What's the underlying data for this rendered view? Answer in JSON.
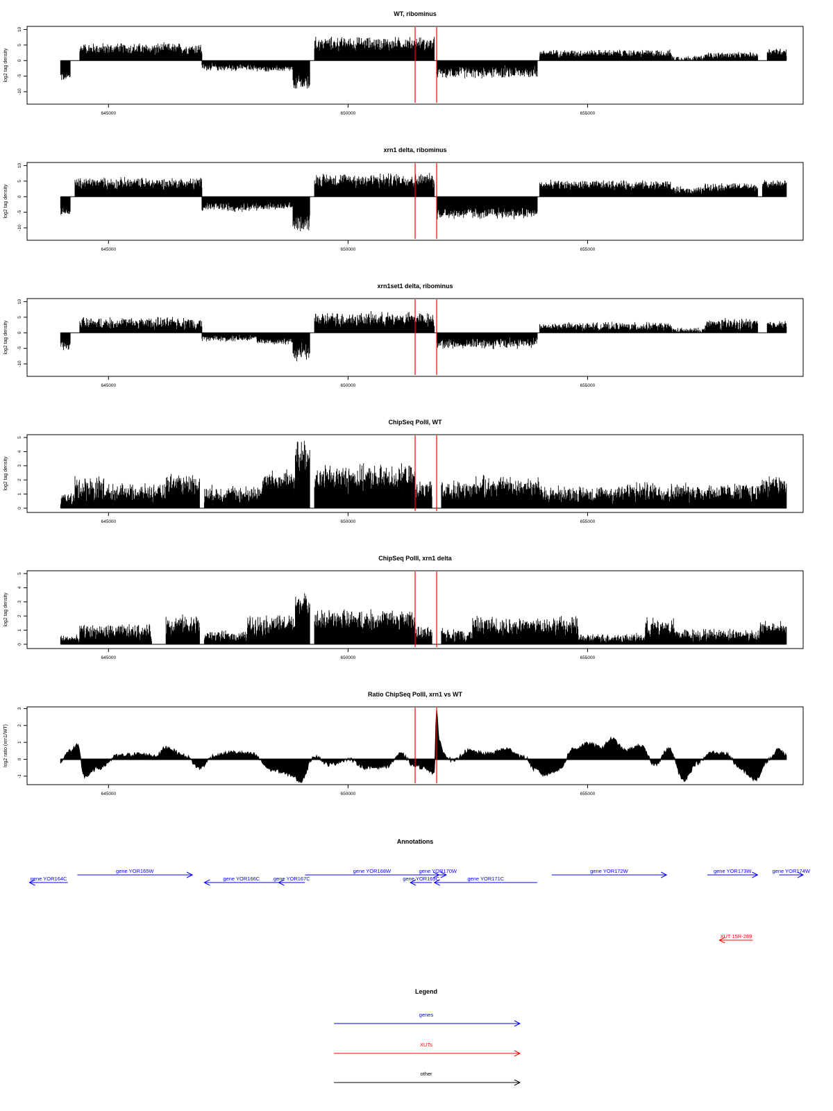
{
  "chart_data": [
    {
      "type": "bar",
      "title": "WT, ribominus",
      "ylabel": "log2 tag density",
      "xlim": [
        643300,
        659500
      ],
      "ylim": [
        -14,
        11
      ],
      "yticks": [
        -10,
        -5,
        0,
        5,
        10
      ],
      "yticklabels": [
        "-10",
        "-5",
        "0",
        "5",
        "10"
      ],
      "xticks": [
        645000,
        650000,
        655000
      ],
      "xticklabels": [
        "645000",
        "650000",
        "655000"
      ],
      "vlines": [
        651400,
        651850
      ],
      "segments": [
        {
          "x": [
            644000,
            644200
          ],
          "level": -5,
          "amp": 2
        },
        {
          "x": [
            644400,
            646950
          ],
          "level": 3.5,
          "amp": 2.5
        },
        {
          "x": [
            646950,
            648100
          ],
          "level": -2,
          "amp": 1.5
        },
        {
          "x": [
            648100,
            648850
          ],
          "level": -2.5,
          "amp": 1.2
        },
        {
          "x": [
            648850,
            649200
          ],
          "level": -7,
          "amp": 3.5
        },
        {
          "x": [
            649300,
            651800
          ],
          "level": 5,
          "amp": 3
        },
        {
          "x": [
            651850,
            653950
          ],
          "level": -3.5,
          "amp": 2.5
        },
        {
          "x": [
            654000,
            656750
          ],
          "level": 2.2,
          "amp": 1.5
        },
        {
          "x": [
            656750,
            657450
          ],
          "level": 0.6,
          "amp": 1.2
        },
        {
          "x": [
            657450,
            658550
          ],
          "level": 1.6,
          "amp": 1.3
        },
        {
          "x": [
            658750,
            659150
          ],
          "level": 2.8,
          "amp": 1.5
        }
      ]
    },
    {
      "type": "bar",
      "title": "xrn1 delta, ribominus",
      "ylabel": "log2 tag density",
      "xlim": [
        643300,
        659500
      ],
      "ylim": [
        -14,
        11
      ],
      "yticks": [
        -10,
        -5,
        0,
        5,
        10
      ],
      "yticklabels": [
        "-10",
        "-5",
        "0",
        "5",
        "10"
      ],
      "xticks": [
        645000,
        650000,
        655000
      ],
      "xticklabels": [
        "645000",
        "650000",
        "655000"
      ],
      "vlines": [
        651400,
        651850
      ],
      "segments": [
        {
          "x": [
            644000,
            644200
          ],
          "level": -4.5,
          "amp": 2
        },
        {
          "x": [
            644300,
            646950
          ],
          "level": 4,
          "amp": 2.5
        },
        {
          "x": [
            646950,
            648100
          ],
          "level": -3,
          "amp": 2
        },
        {
          "x": [
            648100,
            648850
          ],
          "level": -3,
          "amp": 1.5
        },
        {
          "x": [
            648850,
            649200
          ],
          "level": -8,
          "amp": 3.5
        },
        {
          "x": [
            649300,
            651800
          ],
          "level": 5,
          "amp": 3
        },
        {
          "x": [
            651850,
            653950
          ],
          "level": -5,
          "amp": 2.5
        },
        {
          "x": [
            654000,
            656750
          ],
          "level": 3.5,
          "amp": 2
        },
        {
          "x": [
            656750,
            657450
          ],
          "level": 1.8,
          "amp": 1.6
        },
        {
          "x": [
            657450,
            658550
          ],
          "level": 3,
          "amp": 1.6
        },
        {
          "x": [
            658650,
            659150
          ],
          "level": 4,
          "amp": 1.5
        }
      ]
    },
    {
      "type": "bar",
      "title": "xrn1set1 delta, ribominus",
      "ylabel": "log2 tag density",
      "xlim": [
        643300,
        659500
      ],
      "ylim": [
        -14,
        11
      ],
      "yticks": [
        -10,
        -5,
        0,
        5,
        10
      ],
      "yticklabels": [
        "-10",
        "-5",
        "0",
        "5",
        "10"
      ],
      "xticks": [
        645000,
        650000,
        655000
      ],
      "xticklabels": [
        "645000",
        "650000",
        "655000"
      ],
      "vlines": [
        651400,
        651850
      ],
      "segments": [
        {
          "x": [
            644000,
            644200
          ],
          "level": -4,
          "amp": 2
        },
        {
          "x": [
            644400,
            646950
          ],
          "level": 2.8,
          "amp": 2.5
        },
        {
          "x": [
            646950,
            648100
          ],
          "level": -1.5,
          "amp": 1.5
        },
        {
          "x": [
            648100,
            648850
          ],
          "level": -2.5,
          "amp": 1.5
        },
        {
          "x": [
            648850,
            649200
          ],
          "level": -6,
          "amp": 3.5
        },
        {
          "x": [
            649300,
            651800
          ],
          "level": 4,
          "amp": 3
        },
        {
          "x": [
            651850,
            653950
          ],
          "level": -3,
          "amp": 2.5
        },
        {
          "x": [
            654000,
            656750
          ],
          "level": 1.8,
          "amp": 1.8
        },
        {
          "x": [
            656750,
            657450
          ],
          "level": 0.6,
          "amp": 1.2
        },
        {
          "x": [
            657450,
            658550
          ],
          "level": 2.5,
          "amp": 2.5
        },
        {
          "x": [
            658750,
            659150
          ],
          "level": 2.5,
          "amp": 1.5
        }
      ]
    },
    {
      "type": "bar",
      "title": "ChipSeq PolII, WT",
      "ylabel": "log2 tag density",
      "xlim": [
        643300,
        659500
      ],
      "ylim": [
        -0.3,
        5.2
      ],
      "yticks": [
        0,
        1,
        2,
        3,
        4,
        5
      ],
      "yticklabels": [
        "0",
        "1",
        "2",
        "3",
        "4",
        "5"
      ],
      "xticks": [
        645000,
        650000,
        655000
      ],
      "xticklabels": [
        "645000",
        "650000",
        "655000"
      ],
      "vlines": [
        651400,
        651850
      ],
      "segments": [
        {
          "x": [
            644000,
            644300
          ],
          "level": 0.6,
          "amp": 0.6
        },
        {
          "x": [
            644300,
            644900
          ],
          "level": 1.3,
          "amp": 1.2
        },
        {
          "x": [
            644900,
            646200
          ],
          "level": 1,
          "amp": 0.8
        },
        {
          "x": [
            646200,
            646900
          ],
          "level": 1.6,
          "amp": 1
        },
        {
          "x": [
            647000,
            648200
          ],
          "level": 0.9,
          "amp": 0.8
        },
        {
          "x": [
            648200,
            648900
          ],
          "level": 1.8,
          "amp": 1
        },
        {
          "x": [
            648900,
            649200
          ],
          "level": 3.5,
          "amp": 1.5
        },
        {
          "x": [
            649300,
            651400
          ],
          "level": 2,
          "amp": 1.2
        },
        {
          "x": [
            651400,
            651750
          ],
          "level": 1.2,
          "amp": 0.8
        },
        {
          "x": [
            651950,
            652600
          ],
          "level": 1.1,
          "amp": 1
        },
        {
          "x": [
            652600,
            654000
          ],
          "level": 1.4,
          "amp": 1
        },
        {
          "x": [
            654000,
            655600
          ],
          "level": 0.9,
          "amp": 0.8
        },
        {
          "x": [
            655600,
            656500
          ],
          "level": 1.1,
          "amp": 0.9
        },
        {
          "x": [
            656500,
            658600
          ],
          "level": 1,
          "amp": 0.9
        },
        {
          "x": [
            658600,
            659150
          ],
          "level": 1.5,
          "amp": 1
        }
      ]
    },
    {
      "type": "bar",
      "title": "ChipSeq PolII, xrn1 delta",
      "ylabel": "log2 tag density",
      "xlim": [
        643300,
        659500
      ],
      "ylim": [
        -0.3,
        5.2
      ],
      "yticks": [
        0,
        1,
        2,
        3,
        4,
        5
      ],
      "yticklabels": [
        "0",
        "1",
        "2",
        "3",
        "4",
        "5"
      ],
      "xticks": [
        645000,
        650000,
        655000
      ],
      "xticklabels": [
        "645000",
        "650000",
        "655000"
      ],
      "vlines": [
        651400,
        651850
      ],
      "segments": [
        {
          "x": [
            644000,
            644400
          ],
          "level": 0.35,
          "amp": 0.35
        },
        {
          "x": [
            644400,
            645900
          ],
          "level": 0.8,
          "amp": 0.7
        },
        {
          "x": [
            646200,
            646900
          ],
          "level": 1.3,
          "amp": 0.9
        },
        {
          "x": [
            647000,
            647900
          ],
          "level": 0.5,
          "amp": 0.5
        },
        {
          "x": [
            647900,
            648900
          ],
          "level": 1.3,
          "amp": 0.9
        },
        {
          "x": [
            648900,
            649200
          ],
          "level": 2.8,
          "amp": 0.9
        },
        {
          "x": [
            649300,
            651400
          ],
          "level": 1.6,
          "amp": 1
        },
        {
          "x": [
            651400,
            651750
          ],
          "level": 0.7,
          "amp": 0.6
        },
        {
          "x": [
            651950,
            652600
          ],
          "level": 0.6,
          "amp": 0.6
        },
        {
          "x": [
            652600,
            654800
          ],
          "level": 1.2,
          "amp": 0.9
        },
        {
          "x": [
            654800,
            656200
          ],
          "level": 0.4,
          "amp": 0.4
        },
        {
          "x": [
            656200,
            656800
          ],
          "level": 1.1,
          "amp": 0.9
        },
        {
          "x": [
            656800,
            658600
          ],
          "level": 0.6,
          "amp": 0.6
        },
        {
          "x": [
            658600,
            659150
          ],
          "level": 1,
          "amp": 0.8
        }
      ]
    },
    {
      "type": "area",
      "title": "Ratio ChipSeq PolII, xrn1 vs WT",
      "ylabel": "log2 ratio (xrn1/WT)",
      "xlim": [
        643300,
        659500
      ],
      "ylim": [
        -1.5,
        3.1
      ],
      "yticks": [
        -1,
        0,
        1,
        2,
        3
      ],
      "yticklabels": [
        "-1",
        "0",
        "1",
        "2",
        "3"
      ],
      "xticks": [
        645000,
        650000,
        655000
      ],
      "xticklabels": [
        "645000",
        "650000",
        "655000"
      ],
      "vlines": [
        651400,
        651850
      ],
      "x": [
        644000,
        644200,
        644350,
        644500,
        644800,
        645200,
        645600,
        646000,
        646200,
        646600,
        646900,
        647200,
        647600,
        648000,
        648400,
        648800,
        649000,
        649300,
        649600,
        650000,
        650400,
        650800,
        651100,
        651400,
        651600,
        651800,
        651850,
        651900,
        652000,
        652200,
        652500,
        652900,
        653300,
        653700,
        653900,
        654100,
        654400,
        654700,
        655000,
        655300,
        655500,
        655800,
        656100,
        656400,
        656700,
        657000,
        657300,
        657600,
        657900,
        658200,
        658500,
        658800,
        659000,
        659150
      ],
      "values": [
        -0.1,
        0.5,
        0.8,
        -1.0,
        -0.5,
        0.2,
        0.3,
        0.2,
        0.7,
        0.2,
        -0.5,
        0.2,
        0.4,
        0.3,
        -0.6,
        -0.9,
        -1.3,
        0.2,
        -0.3,
        0.0,
        -0.5,
        -0.4,
        0.3,
        -0.4,
        -0.5,
        -0.8,
        2.9,
        1.2,
        0.3,
        -0.1,
        0.5,
        0.3,
        0.6,
        0.1,
        -0.6,
        -0.9,
        -0.6,
        0.6,
        0.9,
        0.7,
        1.2,
        0.5,
        0.8,
        -0.3,
        0.6,
        -1.2,
        -0.2,
        0.4,
        0.3,
        -0.6,
        -1.2,
        0.0,
        0.6,
        0.2
      ]
    }
  ],
  "annotations": {
    "title": "Annotations",
    "genes": [
      {
        "label": "gene YOR164C",
        "start": 643350,
        "end": 644150,
        "strand": "-",
        "row": 1
      },
      {
        "label": "gene YOR165W",
        "start": 644350,
        "end": 646750,
        "strand": "+",
        "row": 0
      },
      {
        "label": "gene YOR166C",
        "start": 647000,
        "end": 648550,
        "strand": "-",
        "row": 1
      },
      {
        "label": "gene YOR167C",
        "start": 648550,
        "end": 649100,
        "strand": "-",
        "row": 1
      },
      {
        "label": "gene YOR168W",
        "start": 649100,
        "end": 651900,
        "strand": "+",
        "row": 0
      },
      {
        "label": "gene YOR169C",
        "start": 651300,
        "end": 651750,
        "strand": "-",
        "row": 1
      },
      {
        "label": "gene YOR170W",
        "start": 651700,
        "end": 652050,
        "strand": "+",
        "row": 0
      },
      {
        "label": "gene YOR171C",
        "start": 651800,
        "end": 653950,
        "strand": "-",
        "row": 1
      },
      {
        "label": "gene YOR172W",
        "start": 654250,
        "end": 656650,
        "strand": "+",
        "row": 0
      },
      {
        "label": "gene YOR173W",
        "start": 657500,
        "end": 658550,
        "strand": "+",
        "row": 0
      },
      {
        "label": "gene YOR174W",
        "start": 659000,
        "end": 659500,
        "strand": "+",
        "row": 0
      }
    ],
    "xuts": [
      {
        "label": "XUT 15R-289",
        "start": 657750,
        "end": 658450,
        "strand": "-"
      }
    ]
  },
  "legend": {
    "title": "Legend",
    "items": [
      {
        "label": "genes",
        "color": "#0000ff"
      },
      {
        "label": "XUTs",
        "color": "#ff0000"
      },
      {
        "label": "other",
        "color": "#000000"
      }
    ]
  },
  "colors": {
    "data": "#000000",
    "marker_lines": "#ff0000",
    "genes": "#0000ff",
    "xuts": "#ff0000"
  }
}
